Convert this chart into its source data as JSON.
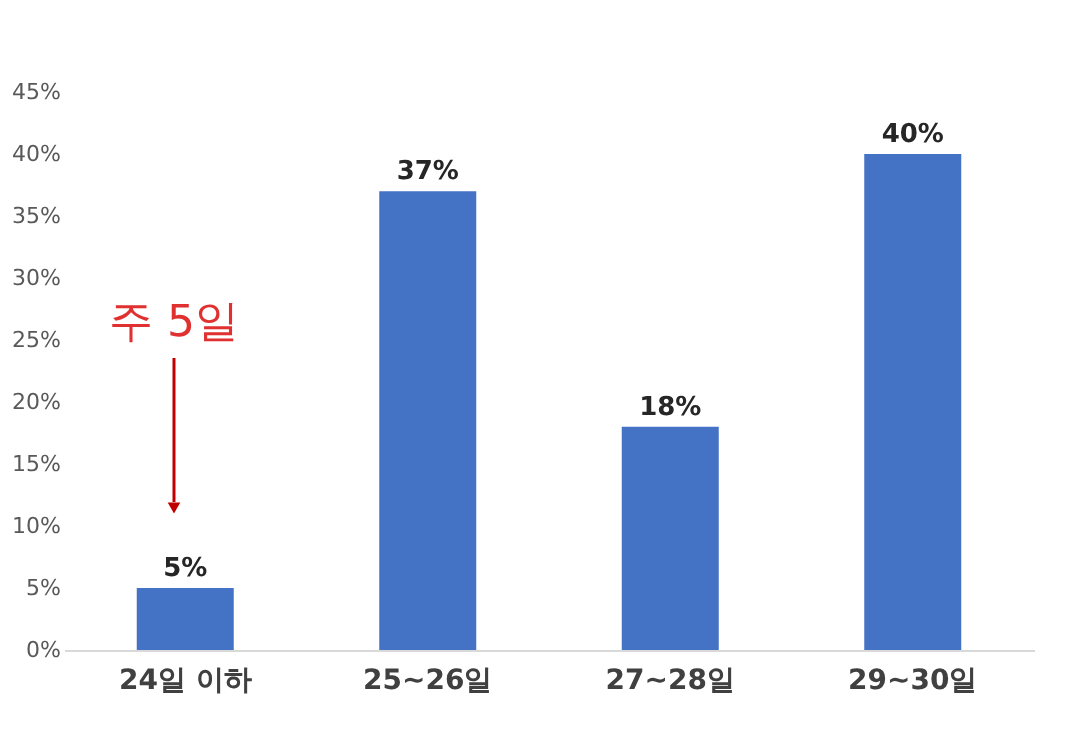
{
  "chart_data": {
    "type": "bar",
    "categories": [
      "24일 이하",
      "25~26일",
      "27~28일",
      "29~30일"
    ],
    "values": [
      5,
      37,
      18,
      40
    ],
    "color": "#4472c4",
    "value_labels": [
      "5%",
      "37%",
      "18%",
      "40%"
    ],
    "ylim": [
      0,
      45
    ],
    "yticks": [
      {
        "value": 0,
        "label": "0%"
      },
      {
        "value": 5,
        "label": "5%"
      },
      {
        "value": 10,
        "label": "10%"
      },
      {
        "value": 15,
        "label": "15%"
      },
      {
        "value": 20,
        "label": "20%"
      },
      {
        "value": 25,
        "label": "25%"
      },
      {
        "value": 30,
        "label": "30%"
      },
      {
        "value": 35,
        "label": "35%"
      },
      {
        "value": 40,
        "label": "40%"
      },
      {
        "value": 45,
        "label": "45%"
      }
    ],
    "grid": false,
    "annotations": [
      "주 5일"
    ]
  }
}
